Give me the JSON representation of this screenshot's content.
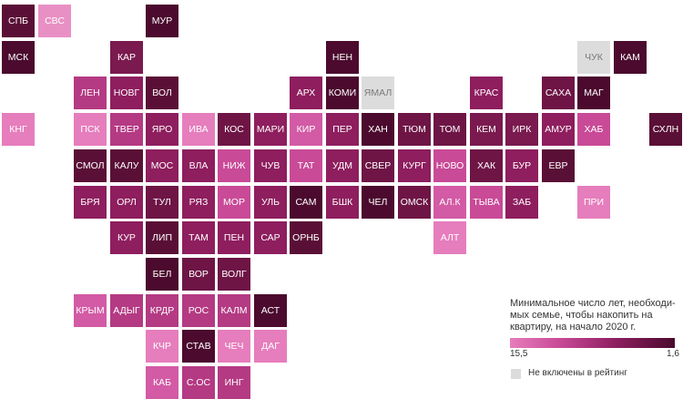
{
  "colors": {
    "not_rated": "#dcdcdc",
    "scale_low_years": "#e67dbc",
    "scale_high_years": "#4b0a2e"
  },
  "legend": {
    "title": "Минимальное число лет, необходи-мых семье, чтобы накопить на квартиру, на начало 2020 г.",
    "min_label": "15,5",
    "max_label": "1,6",
    "not_rated_label": "Не включены в рейтинг"
  },
  "regions": [
    {
      "label": "СПБ",
      "col": 0,
      "row": 0,
      "color": "#5a1036"
    },
    {
      "label": "СВС",
      "col": 1,
      "row": 0,
      "color": "#e890c4"
    },
    {
      "label": "МУР",
      "col": 4,
      "row": 0,
      "color": "#4b0a2e"
    },
    {
      "label": "МСК",
      "col": 0,
      "row": 1,
      "color": "#4b0a2e"
    },
    {
      "label": "КАР",
      "col": 3,
      "row": 1,
      "color": "#7a1a4f"
    },
    {
      "label": "НЕН",
      "col": 9,
      "row": 1,
      "color": "#4b0a2e"
    },
    {
      "label": "ЧУК",
      "col": 16,
      "row": 1,
      "color": "#dcdcdc"
    },
    {
      "label": "КАМ",
      "col": 17,
      "row": 1,
      "color": "#4b0a2e"
    },
    {
      "label": "ЛЕН",
      "col": 2,
      "row": 2,
      "color": "#b43a83"
    },
    {
      "label": "НОВГ",
      "col": 3,
      "row": 2,
      "color": "#8e1e5e"
    },
    {
      "label": "ВОЛ",
      "col": 4,
      "row": 2,
      "color": "#5a1036"
    },
    {
      "label": "АРХ",
      "col": 8,
      "row": 2,
      "color": "#8e1e5e"
    },
    {
      "label": "КОМИ",
      "col": 9,
      "row": 2,
      "color": "#4b0a2e"
    },
    {
      "label": "ЯМАЛ",
      "col": 10,
      "row": 2,
      "color": "#dcdcdc"
    },
    {
      "label": "КРАС",
      "col": 13,
      "row": 2,
      "color": "#8e1e5e"
    },
    {
      "label": "САХА",
      "col": 15,
      "row": 2,
      "color": "#6e1546"
    },
    {
      "label": "МАГ",
      "col": 16,
      "row": 2,
      "color": "#4b0a2e"
    },
    {
      "label": "КНГ",
      "col": 0,
      "row": 3,
      "color": "#e67dbc"
    },
    {
      "label": "ПСК",
      "col": 2,
      "row": 3,
      "color": "#e67dbc"
    },
    {
      "label": "ТВЕР",
      "col": 3,
      "row": 3,
      "color": "#b43a83"
    },
    {
      "label": "ЯРО",
      "col": 4,
      "row": 3,
      "color": "#8e1e5e"
    },
    {
      "label": "ИВА",
      "col": 5,
      "row": 3,
      "color": "#e67dbc"
    },
    {
      "label": "КОС",
      "col": 6,
      "row": 3,
      "color": "#6e1546"
    },
    {
      "label": "МАРИ",
      "col": 7,
      "row": 3,
      "color": "#8e1e5e"
    },
    {
      "label": "КИР",
      "col": 8,
      "row": 3,
      "color": "#d35aa5"
    },
    {
      "label": "ПЕР",
      "col": 9,
      "row": 3,
      "color": "#8e1e5e"
    },
    {
      "label": "ХАН",
      "col": 10,
      "row": 3,
      "color": "#4b0a2e"
    },
    {
      "label": "ТЮМ",
      "col": 11,
      "row": 3,
      "color": "#6e1546"
    },
    {
      "label": "ТОМ",
      "col": 12,
      "row": 3,
      "color": "#6e1546"
    },
    {
      "label": "КЕМ",
      "col": 13,
      "row": 3,
      "color": "#7a1a4f"
    },
    {
      "label": "ИРК",
      "col": 14,
      "row": 3,
      "color": "#7a1a4f"
    },
    {
      "label": "АМУР",
      "col": 15,
      "row": 3,
      "color": "#8e1e5e"
    },
    {
      "label": "ХАБ",
      "col": 16,
      "row": 3,
      "color": "#c94a97"
    },
    {
      "label": "СХЛН",
      "col": 18,
      "row": 3,
      "color": "#5a1036"
    },
    {
      "label": "СМОЛ",
      "col": 2,
      "row": 4,
      "color": "#5a1036"
    },
    {
      "label": "КАЛУ",
      "col": 3,
      "row": 4,
      "color": "#5a1036"
    },
    {
      "label": "МОС",
      "col": 4,
      "row": 4,
      "color": "#8e1e5e"
    },
    {
      "label": "ВЛА",
      "col": 5,
      "row": 4,
      "color": "#8e1e5e"
    },
    {
      "label": "НИЖ",
      "col": 6,
      "row": 4,
      "color": "#c94a97"
    },
    {
      "label": "ЧУВ",
      "col": 7,
      "row": 4,
      "color": "#8e1e5e"
    },
    {
      "label": "ТАТ",
      "col": 8,
      "row": 4,
      "color": "#c94a97"
    },
    {
      "label": "УДМ",
      "col": 9,
      "row": 4,
      "color": "#8e1e5e"
    },
    {
      "label": "СВЕР",
      "col": 10,
      "row": 4,
      "color": "#6e1546"
    },
    {
      "label": "КУРГ",
      "col": 11,
      "row": 4,
      "color": "#8e1e5e"
    },
    {
      "label": "НОВО",
      "col": 12,
      "row": 4,
      "color": "#c94a97"
    },
    {
      "label": "ХАК",
      "col": 13,
      "row": 4,
      "color": "#6e1546"
    },
    {
      "label": "БУР",
      "col": 14,
      "row": 4,
      "color": "#8e1e5e"
    },
    {
      "label": "ЕВР",
      "col": 15,
      "row": 4,
      "color": "#5a1036"
    },
    {
      "label": "БРЯ",
      "col": 2,
      "row": 5,
      "color": "#8e1e5e"
    },
    {
      "label": "ОРЛ",
      "col": 3,
      "row": 5,
      "color": "#8e1e5e"
    },
    {
      "label": "ТУЛ",
      "col": 4,
      "row": 5,
      "color": "#6e1546"
    },
    {
      "label": "РЯЗ",
      "col": 5,
      "row": 5,
      "color": "#8e1e5e"
    },
    {
      "label": "МОР",
      "col": 6,
      "row": 5,
      "color": "#c94a97"
    },
    {
      "label": "УЛЬ",
      "col": 7,
      "row": 5,
      "color": "#8e1e5e"
    },
    {
      "label": "САМ",
      "col": 8,
      "row": 5,
      "color": "#4b0a2e"
    },
    {
      "label": "БШК",
      "col": 9,
      "row": 5,
      "color": "#8e1e5e"
    },
    {
      "label": "ЧЕЛ",
      "col": 10,
      "row": 5,
      "color": "#4b0a2e"
    },
    {
      "label": "ОМСК",
      "col": 11,
      "row": 5,
      "color": "#6e1546"
    },
    {
      "label": "АЛ.К",
      "col": 12,
      "row": 5,
      "color": "#d35aa5"
    },
    {
      "label": "ТЫВА",
      "col": 13,
      "row": 5,
      "color": "#c94a97"
    },
    {
      "label": "ЗАБ",
      "col": 14,
      "row": 5,
      "color": "#8e1e5e"
    },
    {
      "label": "ПРИ",
      "col": 16,
      "row": 5,
      "color": "#e67dbc"
    },
    {
      "label": "КУР",
      "col": 3,
      "row": 6,
      "color": "#8e1e5e"
    },
    {
      "label": "ЛИП",
      "col": 4,
      "row": 6,
      "color": "#5a1036"
    },
    {
      "label": "ТАМ",
      "col": 5,
      "row": 6,
      "color": "#8e1e5e"
    },
    {
      "label": "ПЕН",
      "col": 6,
      "row": 6,
      "color": "#8e1e5e"
    },
    {
      "label": "САР",
      "col": 7,
      "row": 6,
      "color": "#8e1e5e"
    },
    {
      "label": "ОРНБ",
      "col": 8,
      "row": 6,
      "color": "#5a1036"
    },
    {
      "label": "АЛТ",
      "col": 12,
      "row": 6,
      "color": "#e67dbc"
    },
    {
      "label": "БЕЛ",
      "col": 4,
      "row": 7,
      "color": "#4b0a2e"
    },
    {
      "label": "ВОР",
      "col": 5,
      "row": 7,
      "color": "#6e1546"
    },
    {
      "label": "ВОЛГ",
      "col": 6,
      "row": 7,
      "color": "#6e1546"
    },
    {
      "label": "КРЫМ",
      "col": 2,
      "row": 8,
      "color": "#d35aa5"
    },
    {
      "label": "АДЫГ",
      "col": 3,
      "row": 8,
      "color": "#b43a83"
    },
    {
      "label": "КРДР",
      "col": 4,
      "row": 8,
      "color": "#b43a83"
    },
    {
      "label": "РОС",
      "col": 5,
      "row": 8,
      "color": "#b43a83"
    },
    {
      "label": "КАЛМ",
      "col": 6,
      "row": 8,
      "color": "#b43a83"
    },
    {
      "label": "АСТ",
      "col": 7,
      "row": 8,
      "color": "#4b0a2e"
    },
    {
      "label": "КЧР",
      "col": 4,
      "row": 9,
      "color": "#e67dbc"
    },
    {
      "label": "СТАВ",
      "col": 5,
      "row": 9,
      "color": "#4b0a2e"
    },
    {
      "label": "ЧЕЧ",
      "col": 6,
      "row": 9,
      "color": "#e67dbc"
    },
    {
      "label": "ДАГ",
      "col": 7,
      "row": 9,
      "color": "#e67dbc"
    },
    {
      "label": "КАБ",
      "col": 4,
      "row": 10,
      "color": "#d35aa5"
    },
    {
      "label": "С.ОС",
      "col": 5,
      "row": 10,
      "color": "#b43a83"
    },
    {
      "label": "ИНГ",
      "col": 6,
      "row": 10,
      "color": "#b43a83"
    }
  ]
}
